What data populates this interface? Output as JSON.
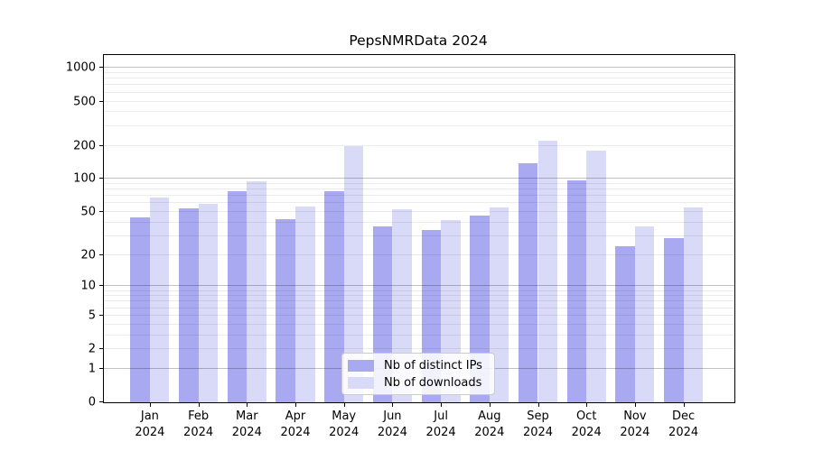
{
  "title": "PepsNMRData 2024",
  "legend": {
    "items": [
      {
        "label": "Nb of distinct IPs",
        "color": "#a9a9f2"
      },
      {
        "label": "Nb of downloads",
        "color": "#d9d9f8"
      }
    ]
  },
  "chart_data": {
    "type": "bar",
    "title": "PepsNMRData 2024",
    "x_months": [
      "Jan",
      "Feb",
      "Mar",
      "Apr",
      "May",
      "Jun",
      "Jul",
      "Aug",
      "Sep",
      "Oct",
      "Nov",
      "Dec"
    ],
    "year": "2024",
    "categories": [
      "Jan 2024",
      "Feb 2024",
      "Mar 2024",
      "Apr 2024",
      "May 2024",
      "Jun 2024",
      "Jul 2024",
      "Aug 2024",
      "Sep 2024",
      "Oct 2024",
      "Nov 2024",
      "Dec 2024"
    ],
    "series": [
      {
        "name": "Nb of distinct IPs",
        "color": "#a9a9f2",
        "values": [
          45,
          54,
          77,
          43,
          77,
          37,
          34,
          46,
          138,
          97,
          24,
          29
        ]
      },
      {
        "name": "Nb of downloads",
        "color": "#d9d9f8",
        "values": [
          68,
          59,
          95,
          56,
          199,
          53,
          42,
          55,
          220,
          180,
          37,
          55
        ]
      }
    ],
    "xlabel": "",
    "ylabel": "",
    "y_scale": "log10(value+1)",
    "y_ticks": [
      0,
      1,
      2,
      5,
      10,
      20,
      50,
      100,
      200,
      500,
      1000
    ],
    "ylim": [
      0,
      1300
    ],
    "grid": "horizontal, minor at 2-9/20-90/200-900, major at 1/10/100/1000",
    "legend_position": "inside bottom-center"
  }
}
